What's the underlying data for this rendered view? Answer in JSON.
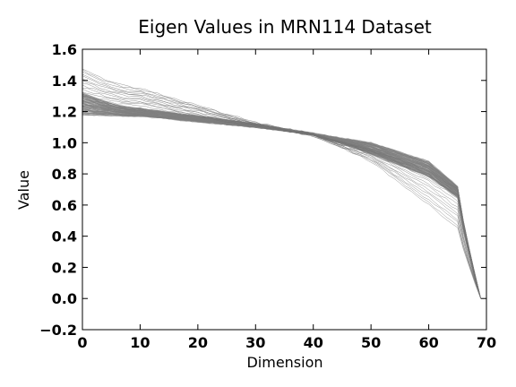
{
  "chart_data": {
    "type": "line",
    "title": "Eigen Values in MRN114 Dataset",
    "xlabel": "Dimension",
    "ylabel": "Value",
    "xlim": [
      0,
      70
    ],
    "ylim": [
      -0.2,
      1.6
    ],
    "xticks": [
      0,
      10,
      20,
      30,
      40,
      50,
      60,
      70
    ],
    "yticks": [
      -0.2,
      0.0,
      0.2,
      0.4,
      0.6,
      0.8,
      1.0,
      1.2,
      1.4,
      1.6
    ],
    "xtick_labels": [
      "0",
      "10",
      "20",
      "30",
      "40",
      "50",
      "60",
      "70"
    ],
    "ytick_labels": [
      "−0.2",
      "0.0",
      "0.2",
      "0.4",
      "0.6",
      "0.8",
      "1.0",
      "1.2",
      "1.4",
      "1.6"
    ],
    "grid": false,
    "line_color": "#808080",
    "n_points_per_series": 70,
    "series_count": 114,
    "series_family": {
      "dense_band": {
        "count": 100,
        "start_range": [
          1.18,
          1.32
        ],
        "at_10": [
          1.17,
          1.22
        ],
        "at_30": [
          1.1,
          1.12
        ],
        "at_40": [
          1.05,
          1.06
        ],
        "at_50": [
          0.93,
          1.0
        ],
        "at_60": [
          0.78,
          0.88
        ],
        "at_65": [
          0.65,
          0.72
        ],
        "end_value": 0.0,
        "end_dimension": 69
      },
      "outliers": {
        "count": 14,
        "start_range": [
          1.3,
          1.48
        ],
        "at_10": [
          1.24,
          1.35
        ],
        "at_50": [
          0.88,
          0.96
        ],
        "at_60": [
          0.6,
          0.82
        ],
        "end_value": 0.0,
        "end_dimension": 69
      }
    }
  }
}
